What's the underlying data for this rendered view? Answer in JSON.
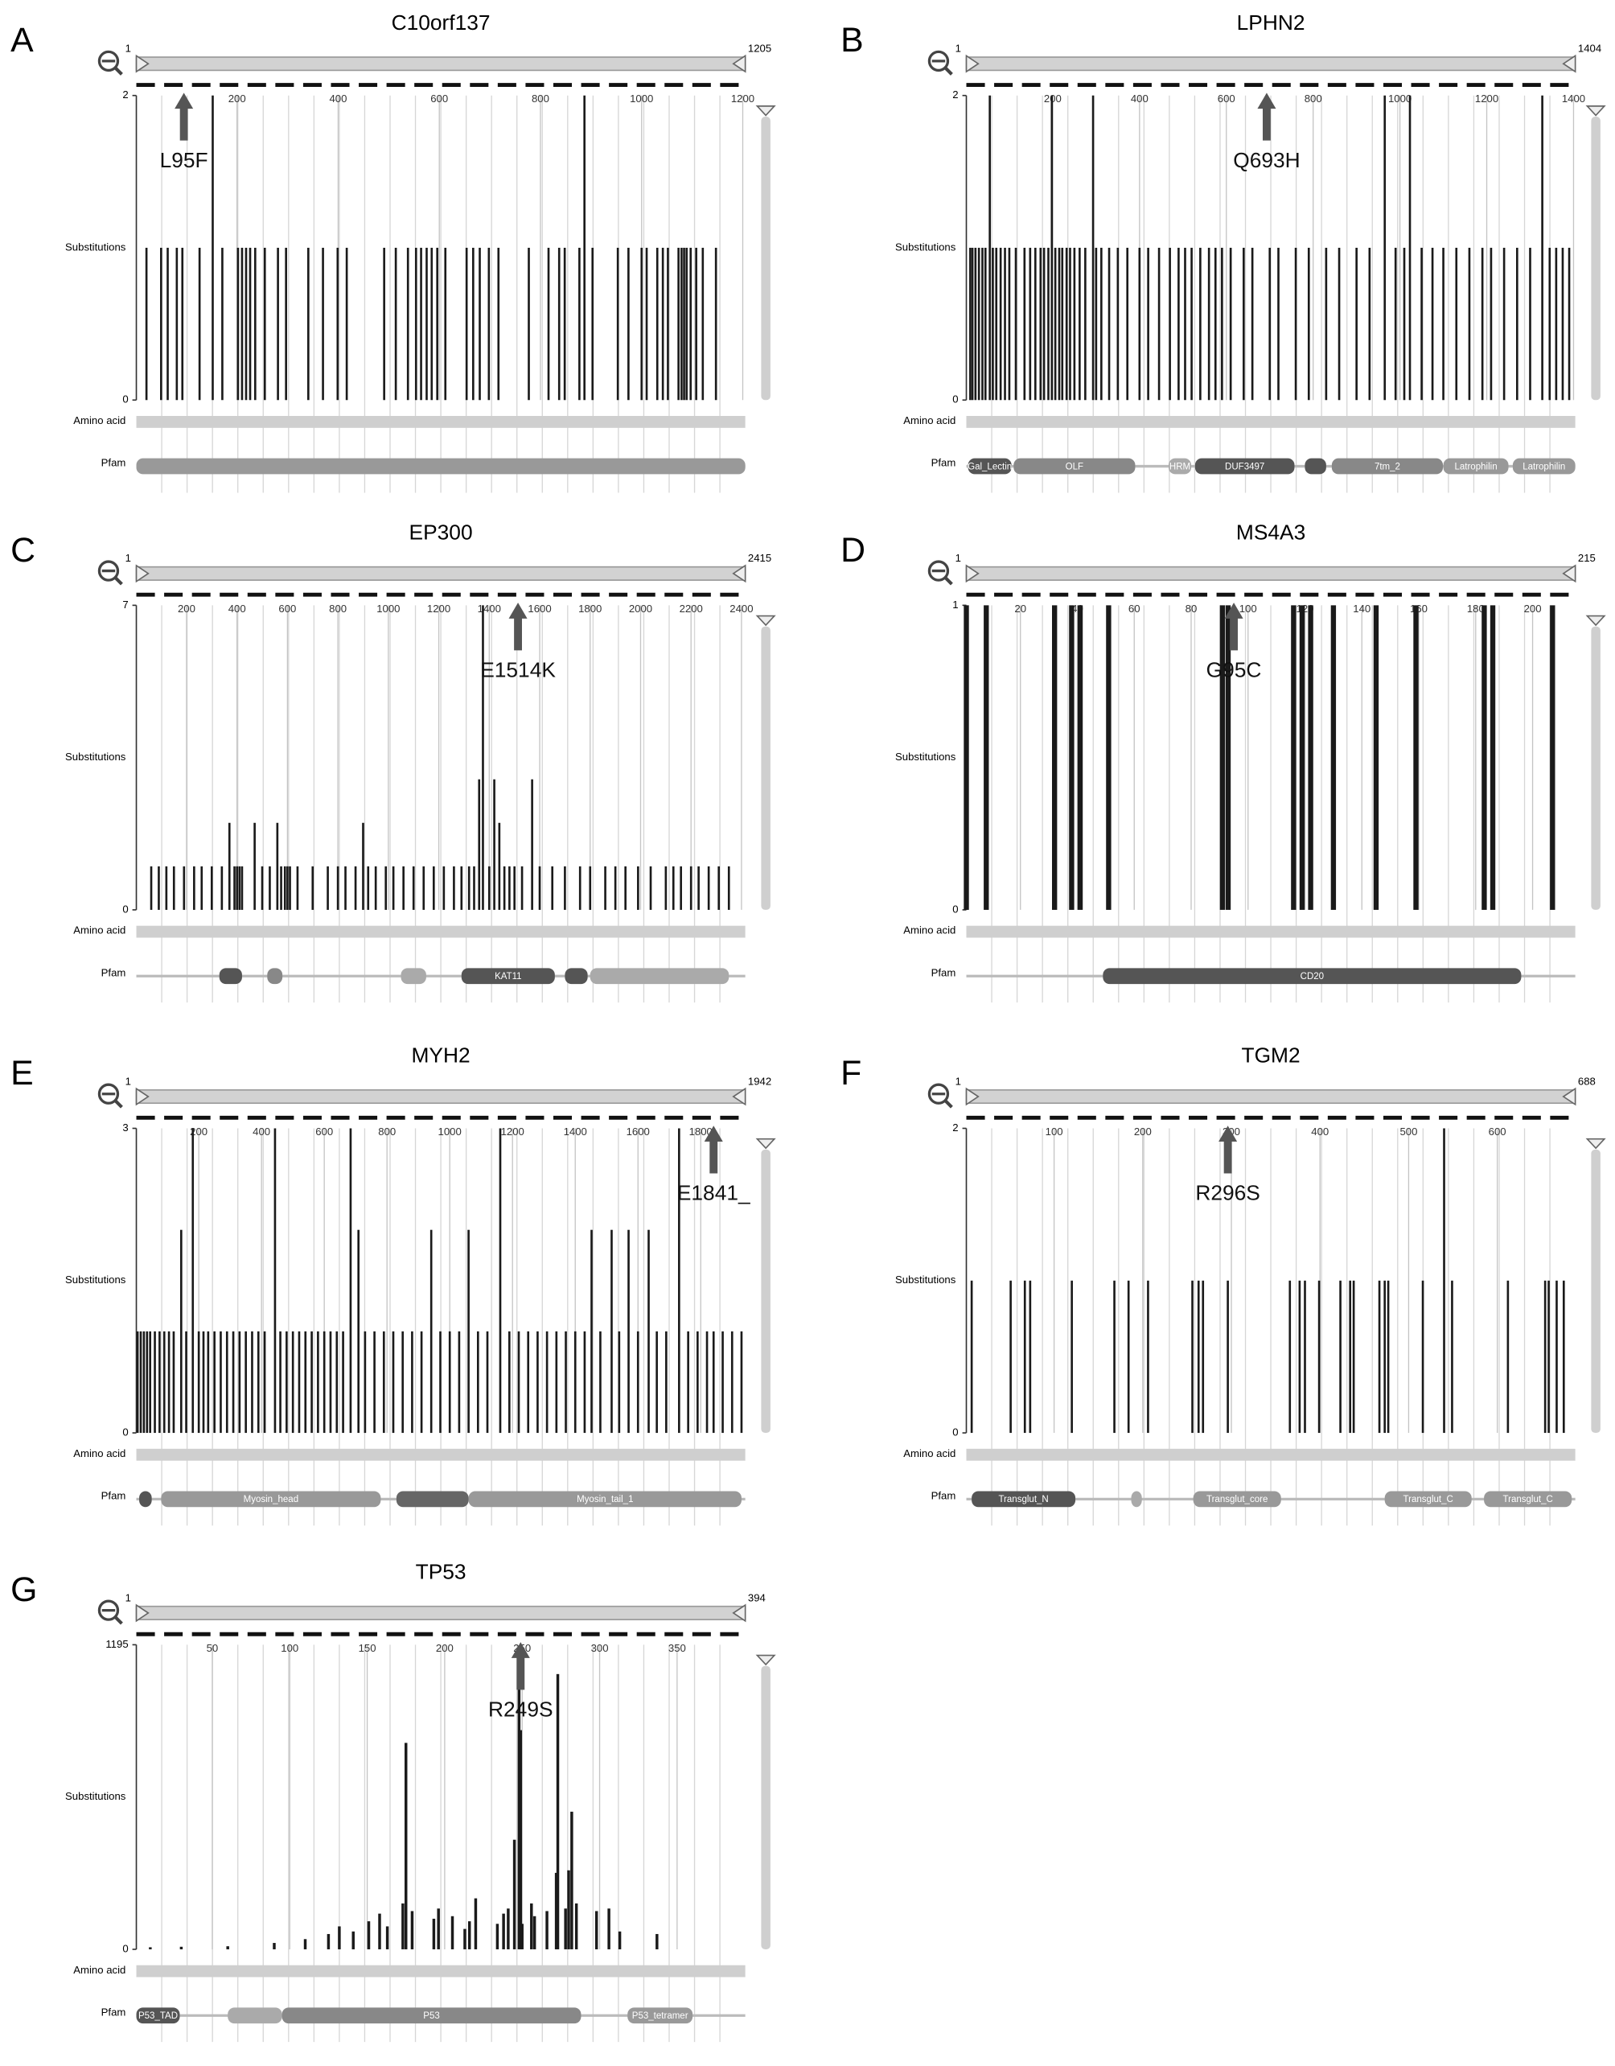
{
  "chart_data": [
    {
      "type": "bar",
      "panel": "A",
      "title": "C10orf137",
      "y_label": "Substitutions",
      "row_labels": [
        "Amino acid",
        "Pfam"
      ],
      "xlim": [
        1,
        1205
      ],
      "xticks": [
        200,
        400,
        600,
        800,
        1000,
        1200
      ],
      "ylim": [
        0,
        2
      ],
      "yticks": [
        0,
        2
      ],
      "color": "#1a1a1a",
      "x": [
        21,
        50,
        63,
        81,
        92,
        126,
        152,
        171,
        202,
        210,
        218,
        226,
        236,
        255,
        281,
        297,
        341,
        370,
        399,
        417,
        491,
        514,
        538,
        554,
        564,
        575,
        585,
        596,
        612,
        654,
        667,
        680,
        698,
        717,
        777,
        816,
        837,
        848,
        877,
        887,
        903,
        953,
        974,
        1000,
        1010,
        1031,
        1042,
        1052,
        1073,
        1079,
        1084,
        1089,
        1097,
        1108,
        1121,
        1147
      ],
      "values": [
        1,
        1,
        1,
        1,
        1,
        1,
        2,
        1,
        1,
        1,
        1,
        1,
        1,
        1,
        1,
        1,
        1,
        1,
        1,
        1,
        1,
        1,
        1,
        1,
        1,
        1,
        1,
        1,
        1,
        1,
        1,
        1,
        1,
        1,
        1,
        1,
        1,
        1,
        1,
        2,
        1,
        1,
        1,
        1,
        1,
        1,
        1,
        1,
        1,
        1,
        1,
        1,
        1,
        1,
        1,
        1
      ],
      "annotation": {
        "text": "L95F",
        "x": 95
      },
      "domains": [
        {
          "start": 1,
          "end": 1205,
          "color": "#999999"
        }
      ]
    },
    {
      "type": "bar",
      "panel": "B",
      "title": "LPHN2",
      "y_label": "Substitutions",
      "row_labels": [
        "Amino acid",
        "Pfam"
      ],
      "xlim": [
        1,
        1404
      ],
      "xticks": [
        200,
        400,
        600,
        800,
        1000,
        1200,
        1400
      ],
      "ylim": [
        0,
        2
      ],
      "yticks": [
        0,
        2
      ],
      "color": "#1a1a1a",
      "x": [
        10,
        15,
        22,
        30,
        38,
        45,
        55,
        62,
        70,
        80,
        90,
        100,
        115,
        135,
        148,
        160,
        172,
        180,
        190,
        198,
        206,
        215,
        222,
        232,
        240,
        250,
        262,
        275,
        293,
        300,
        312,
        330,
        350,
        372,
        400,
        420,
        445,
        470,
        490,
        505,
        520,
        540,
        560,
        575,
        590,
        610,
        640,
        660,
        700,
        720,
        760,
        790,
        830,
        860,
        900,
        930,
        965,
        990,
        1010,
        1023,
        1050,
        1075,
        1100,
        1130,
        1160,
        1190,
        1210,
        1240,
        1270,
        1300,
        1328,
        1345,
        1360,
        1375,
        1390
      ],
      "values": [
        1,
        1,
        1,
        1,
        1,
        1,
        2,
        1,
        1,
        1,
        1,
        1,
        1,
        1,
        1,
        1,
        1,
        1,
        1,
        2,
        1,
        1,
        1,
        1,
        1,
        1,
        1,
        1,
        2,
        1,
        1,
        1,
        1,
        1,
        1,
        1,
        1,
        1,
        1,
        1,
        1,
        1,
        1,
        1,
        1,
        1,
        1,
        1,
        1,
        1,
        1,
        1,
        1,
        1,
        1,
        1,
        2,
        1,
        1,
        2,
        1,
        1,
        1,
        1,
        1,
        1,
        1,
        1,
        1,
        1,
        2,
        1,
        1,
        1,
        1
      ],
      "annotation": {
        "text": "Q693H",
        "x": 693
      },
      "domains": [
        {
          "start": 5,
          "end": 105,
          "color": "#555555",
          "label": "Gal_Lectin"
        },
        {
          "start": 110,
          "end": 390,
          "color": "#888888",
          "label": "OLF"
        },
        {
          "start": 467,
          "end": 519,
          "color": "#aaaaaa",
          "label": "HRM"
        },
        {
          "start": 528,
          "end": 757,
          "color": "#555555",
          "label": "DUF3497"
        },
        {
          "start": 781,
          "end": 830,
          "color": "#555555"
        },
        {
          "start": 843,
          "end": 1099,
          "color": "#888888",
          "label": "7tm_2"
        },
        {
          "start": 1100,
          "end": 1250,
          "color": "#999999",
          "label": "Latrophilin"
        },
        {
          "start": 1260,
          "end": 1404,
          "color": "#999999",
          "label": "Latrophilin"
        }
      ]
    },
    {
      "type": "bar",
      "panel": "C",
      "title": "EP300",
      "y_label": "Substitutions",
      "row_labels": [
        "Amino acid",
        "Pfam"
      ],
      "xlim": [
        1,
        2415
      ],
      "xticks": [
        200,
        400,
        600,
        800,
        1000,
        1200,
        1400,
        1600,
        1800,
        2000,
        2200,
        2400
      ],
      "ylim": [
        0,
        7
      ],
      "yticks": [
        0,
        7
      ],
      "color": "#1a1a1a",
      "x": [
        60,
        90,
        120,
        150,
        190,
        230,
        260,
        300,
        340,
        370,
        390,
        400,
        410,
        420,
        470,
        500,
        530,
        560,
        575,
        590,
        600,
        610,
        640,
        700,
        760,
        800,
        830,
        870,
        900,
        920,
        950,
        990,
        1020,
        1060,
        1100,
        1140,
        1180,
        1220,
        1260,
        1290,
        1320,
        1340,
        1360,
        1375,
        1400,
        1420,
        1440,
        1460,
        1480,
        1500,
        1530,
        1570,
        1600,
        1650,
        1700,
        1760,
        1800,
        1860,
        1900,
        1940,
        1990,
        2040,
        2100,
        2130,
        2160,
        2200,
        2230,
        2270,
        2310,
        2350
      ],
      "values": [
        1,
        1,
        1,
        1,
        1,
        1,
        1,
        1,
        1,
        2,
        1,
        1,
        1,
        1,
        2,
        1,
        1,
        2,
        1,
        1,
        1,
        1,
        1,
        1,
        1,
        1,
        1,
        1,
        2,
        1,
        1,
        1,
        1,
        1,
        1,
        1,
        1,
        1,
        1,
        1,
        1,
        1,
        3,
        7,
        1,
        3,
        2,
        1,
        1,
        1,
        1,
        3,
        1,
        1,
        1,
        1,
        1,
        1,
        1,
        1,
        1,
        1,
        1,
        1,
        1,
        1,
        1,
        1,
        1,
        1
      ],
      "annotation": {
        "text": "E1514K",
        "x": 1514
      },
      "domains": [
        {
          "start": 330,
          "end": 420,
          "color": "#555555"
        },
        {
          "start": 520,
          "end": 580,
          "color": "#888888"
        },
        {
          "start": 1050,
          "end": 1150,
          "color": "#aaaaaa"
        },
        {
          "start": 1290,
          "end": 1660,
          "color": "#555555",
          "label": "KAT11"
        },
        {
          "start": 1700,
          "end": 1790,
          "color": "#555555"
        },
        {
          "start": 1800,
          "end": 2350,
          "color": "#aaaaaa"
        }
      ]
    },
    {
      "type": "bar",
      "panel": "D",
      "title": "MS4A3",
      "y_label": "Substitutions",
      "row_labels": [
        "Amino acid",
        "Pfam"
      ],
      "xlim": [
        1,
        215
      ],
      "xticks": [
        20,
        40,
        60,
        80,
        100,
        120,
        140,
        160,
        180,
        200
      ],
      "ylim": [
        0,
        1
      ],
      "yticks": [
        0,
        1
      ],
      "color": "#1a1a1a",
      "x": [
        1,
        8,
        32,
        38,
        41,
        51,
        91,
        93,
        116,
        119,
        122,
        130,
        145,
        159,
        183,
        186,
        207
      ],
      "values": [
        1,
        1,
        1,
        1,
        1,
        1,
        1,
        1,
        1,
        1,
        1,
        1,
        1,
        1,
        1,
        1,
        1
      ],
      "annotation": {
        "text": "G95C",
        "x": 95
      },
      "domains": [
        {
          "start": 49,
          "end": 196,
          "color": "#555555",
          "label": "CD20"
        }
      ]
    },
    {
      "type": "bar",
      "panel": "E",
      "title": "MYH2",
      "y_label": "Substitutions",
      "row_labels": [
        "Amino acid",
        "Pfam"
      ],
      "xlim": [
        1,
        1942
      ],
      "xticks": [
        200,
        400,
        600,
        800,
        1000,
        1200,
        1400,
        1600,
        1800
      ],
      "ylim": [
        0,
        3
      ],
      "yticks": [
        0,
        3
      ],
      "color": "#1a1a1a",
      "x": [
        5,
        15,
        25,
        35,
        45,
        60,
        75,
        90,
        105,
        120,
        144,
        160,
        181,
        200,
        215,
        230,
        250,
        270,
        290,
        310,
        330,
        350,
        370,
        390,
        410,
        443,
        460,
        480,
        500,
        520,
        540,
        560,
        580,
        600,
        620,
        640,
        660,
        684,
        709,
        730,
        760,
        790,
        820,
        850,
        880,
        910,
        941,
        970,
        1000,
        1030,
        1060,
        1090,
        1120,
        1161,
        1190,
        1220,
        1250,
        1280,
        1310,
        1340,
        1370,
        1400,
        1430,
        1452,
        1480,
        1516,
        1540,
        1570,
        1600,
        1634,
        1660,
        1690,
        1731,
        1760,
        1790,
        1820,
        1841,
        1870,
        1900,
        1930
      ],
      "values": [
        1,
        1,
        1,
        1,
        1,
        1,
        1,
        1,
        1,
        1,
        2,
        1,
        3,
        1,
        1,
        1,
        1,
        1,
        1,
        1,
        1,
        1,
        1,
        1,
        1,
        3,
        1,
        1,
        1,
        1,
        1,
        1,
        1,
        1,
        1,
        1,
        1,
        3,
        2,
        1,
        1,
        1,
        1,
        1,
        1,
        1,
        2,
        1,
        1,
        1,
        2,
        1,
        1,
        3,
        1,
        1,
        1,
        1,
        1,
        1,
        1,
        1,
        1,
        2,
        1,
        2,
        1,
        2,
        1,
        2,
        1,
        1,
        3,
        1,
        1,
        1,
        1,
        1,
        1,
        1
      ],
      "annotation": {
        "text": "E1841_",
        "x": 1841
      },
      "domains": [
        {
          "start": 10,
          "end": 50,
          "color": "#555555"
        },
        {
          "start": 80,
          "end": 780,
          "color": "#999999",
          "label": "Myosin_head"
        },
        {
          "start": 830,
          "end": 1060,
          "color": "#666666"
        },
        {
          "start": 1060,
          "end": 1930,
          "color": "#999999",
          "label": "Myosin_tail_1"
        }
      ]
    },
    {
      "type": "bar",
      "panel": "F",
      "title": "TGM2",
      "y_label": "Substitutions",
      "row_labels": [
        "Amino acid",
        "Pfam"
      ],
      "xlim": [
        1,
        688
      ],
      "xticks": [
        100,
        200,
        300,
        400,
        500,
        600
      ],
      "ylim": [
        0,
        2
      ],
      "yticks": [
        0,
        2
      ],
      "color": "#1a1a1a",
      "x": [
        7,
        51,
        67,
        73,
        120,
        168,
        184,
        206,
        256,
        263,
        268,
        296,
        366,
        377,
        383,
        399,
        423,
        434,
        438,
        467,
        473,
        477,
        516,
        540,
        549,
        612,
        654,
        658,
        667,
        675
      ],
      "values": [
        1,
        1,
        1,
        1,
        1,
        1,
        1,
        1,
        1,
        1,
        1,
        1,
        1,
        1,
        1,
        1,
        1,
        1,
        1,
        1,
        1,
        1,
        1,
        2,
        1,
        1,
        1,
        1,
        1,
        1
      ],
      "annotation": {
        "text": "R296S",
        "x": 296
      },
      "domains": [
        {
          "start": 7,
          "end": 124,
          "color": "#555555",
          "label": "Transglut_N"
        },
        {
          "start": 187,
          "end": 199,
          "color": "#aaaaaa"
        },
        {
          "start": 257,
          "end": 356,
          "color": "#999999",
          "label": "Transglut_core"
        },
        {
          "start": 473,
          "end": 571,
          "color": "#999999",
          "label": "Transglut_C"
        },
        {
          "start": 585,
          "end": 684,
          "color": "#999999",
          "label": "Transglut_C"
        }
      ]
    },
    {
      "type": "bar",
      "panel": "G",
      "title": "TP53",
      "y_label": "Substitutions",
      "row_labels": [
        "Amino acid",
        "Pfam"
      ],
      "xlim": [
        1,
        394
      ],
      "xticks": [
        50,
        100,
        150,
        200,
        250,
        300,
        350
      ],
      "ylim": [
        0,
        1195
      ],
      "yticks": [
        0,
        1195
      ],
      "color": "#1a1a1a",
      "x": [
        10,
        30,
        60,
        90,
        110,
        125,
        132,
        141,
        151,
        158,
        163,
        173,
        175,
        179,
        193,
        196,
        205,
        213,
        216,
        220,
        234,
        238,
        241,
        245,
        248,
        249,
        250,
        256,
        258,
        266,
        272,
        273,
        278,
        280,
        282,
        285,
        298,
        306,
        313,
        337
      ],
      "values": [
        8,
        10,
        12,
        25,
        40,
        60,
        90,
        70,
        110,
        140,
        90,
        180,
        810,
        150,
        120,
        160,
        130,
        80,
        110,
        200,
        100,
        140,
        160,
        430,
        1115,
        860,
        100,
        180,
        130,
        150,
        300,
        1080,
        160,
        310,
        540,
        180,
        150,
        160,
        70,
        60
      ],
      "annotation": {
        "text": "R249S",
        "x": 249
      },
      "domains": [
        {
          "start": 1,
          "end": 29,
          "color": "#555555",
          "label": "P53_TAD"
        },
        {
          "start": 60,
          "end": 95,
          "color": "#aaaaaa"
        },
        {
          "start": 95,
          "end": 288,
          "color": "#888888",
          "label": "P53"
        },
        {
          "start": 318,
          "end": 360,
          "color": "#999999",
          "label": "P53_tetramer"
        }
      ]
    }
  ]
}
